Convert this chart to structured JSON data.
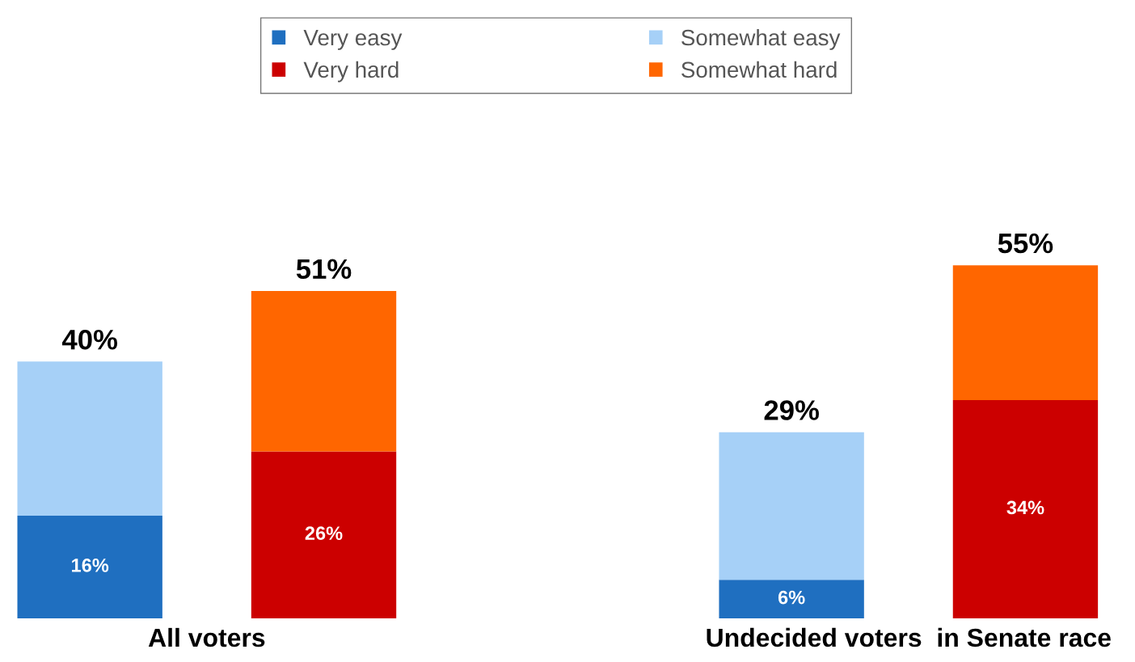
{
  "chart_data": {
    "type": "bar",
    "stacked": true,
    "categories": [
      null,
      null,
      null,
      null
    ],
    "series": [
      {
        "name": "Very easy",
        "color": "#1f6fc0",
        "values": [
          16,
          null,
          6,
          null
        ],
        "value_labels": [
          "16%",
          null,
          "6%",
          null
        ]
      },
      {
        "name": "Somewhat easy",
        "color": "#a6d0f7",
        "values": [
          24,
          null,
          23,
          null
        ]
      },
      {
        "name": "Very hard",
        "color": "#cc0000",
        "values": [
          null,
          26,
          null,
          34
        ],
        "value_labels": [
          null,
          "26%",
          null,
          "34%"
        ]
      },
      {
        "name": "Somewhat hard",
        "color": "#ff6600",
        "values": [
          null,
          25,
          null,
          21
        ]
      }
    ],
    "totals": [
      "40%",
      "51%",
      "29%",
      "55%"
    ],
    "annotations": [
      "All voters",
      "Undecided voters  in Senate race"
    ],
    "legend": "top"
  }
}
